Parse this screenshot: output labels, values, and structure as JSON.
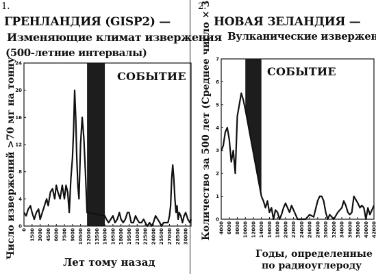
{
  "panels": [
    {
      "number": "1.",
      "title_lines": [
        "ГРЕНЛАНДИЯ (GISP2) —",
        "Изменяющие климат извержения",
        "(500-летние интервалы)"
      ],
      "event_label": "СОБЫТИЕ",
      "xlabel": "Лет тому назад",
      "ylabel": "Число извержений >70 мг на тонну"
    },
    {
      "number": "2.",
      "title_lines": [
        "НОВАЯ ЗЕЛАНДИЯ —",
        "Вулканические извержения"
      ],
      "event_label": "СОБЫТИЕ",
      "xlabel_lines": [
        "Годы, определенные",
        "по радиоуглероду"
      ],
      "ylabel": "Количество за 500 лет (Среднее число × 3)"
    }
  ],
  "chart_data": [
    {
      "type": "line",
      "title": "ГРЕНЛАНДИЯ (GISP2) — Изменяющие климат извержения (500-летние интервалы)",
      "xlabel": "Лет тому назад",
      "ylabel": "Число извержений >70 мг на тонну",
      "xlim": [
        0,
        31000
      ],
      "ylim": [
        0,
        24
      ],
      "y_ticks": [
        0,
        4,
        8,
        12,
        16,
        20,
        24
      ],
      "x_ticks": [
        0,
        1500,
        3000,
        4500,
        6000,
        7500,
        9000,
        10500,
        12000,
        13500,
        15000,
        16500,
        18000,
        19500,
        21000,
        22500,
        24000,
        25500,
        27000,
        28500,
        30000
      ],
      "event_band": [
        11700,
        15000
      ],
      "event_label": "СОБЫТИЕ",
      "grid": false,
      "legend": "none",
      "x": [
        0,
        400,
        800,
        1200,
        1500,
        1900,
        2300,
        2700,
        3000,
        3400,
        3800,
        4200,
        4500,
        4900,
        5300,
        5700,
        6000,
        6300,
        6700,
        7100,
        7500,
        7800,
        8100,
        8400,
        8700,
        9000,
        9200,
        9400,
        9600,
        9800,
        10000,
        10200,
        10500,
        10800,
        11100,
        11400,
        11600,
        11700,
        15000,
        15300,
        15700,
        16100,
        16500,
        16900,
        17300,
        17700,
        18000,
        18400,
        18800,
        19200,
        19500,
        19900,
        20300,
        20700,
        21000,
        21400,
        21800,
        22200,
        22500,
        22900,
        23300,
        23700,
        24000,
        24400,
        24800,
        25200,
        25500,
        25900,
        26300,
        26700,
        27000,
        27200,
        27400,
        27600,
        27800,
        28000,
        28200,
        28400,
        28600,
        28800,
        29100,
        29400,
        29700,
        30000,
        30400,
        30800,
        31000
      ],
      "values": [
        2,
        1.5,
        2.5,
        3,
        2,
        1,
        2,
        2.5,
        1,
        2,
        3,
        4,
        3,
        5,
        5.5,
        4,
        6,
        5,
        4,
        6,
        4,
        6,
        5,
        2,
        7,
        10,
        14,
        20,
        16,
        10,
        6,
        4,
        12,
        16,
        13,
        8,
        4,
        2,
        1.5,
        1,
        0.5,
        1,
        1.5,
        0.5,
        1,
        2,
        1,
        0.5,
        1,
        2,
        2,
        0.5,
        0.5,
        1.5,
        1,
        0.5,
        0.5,
        1,
        0.5,
        0,
        0.5,
        0,
        0.5,
        1.5,
        1,
        0.5,
        0,
        0.5,
        0.5,
        0.5,
        1.5,
        3,
        7,
        9,
        7,
        4,
        2,
        3,
        1,
        2,
        1.5,
        0.5,
        1.5,
        2,
        1,
        0.5,
        1
      ]
    },
    {
      "type": "area",
      "title": "НОВАЯ ЗЕЛАНДИЯ — Вулканические извержения",
      "xlabel": "Годы, определенные по радиоуглероду",
      "ylabel": "Количество за 500 лет (Среднее число × 3)",
      "xlim": [
        4000,
        42000
      ],
      "ylim": [
        0,
        7
      ],
      "y_ticks": [
        0,
        1,
        2,
        3,
        4,
        5,
        6,
        7
      ],
      "x_ticks": [
        4000,
        6000,
        8000,
        10000,
        12000,
        14000,
        16000,
        18000,
        20000,
        22000,
        24000,
        26000,
        28000,
        30000,
        32000,
        34000,
        36000,
        38000,
        40000,
        42000
      ],
      "event_band": [
        10000,
        14000
      ],
      "event_label": "СОБЫТИЕ",
      "grid": false,
      "legend": "none",
      "x": [
        4000,
        4500,
        5000,
        5500,
        6000,
        6500,
        7000,
        7500,
        8000,
        8500,
        9000,
        9500,
        10000,
        14000,
        14500,
        15000,
        15500,
        16000,
        16500,
        17000,
        17500,
        18000,
        18500,
        19000,
        19500,
        20000,
        20500,
        21000,
        21500,
        22000,
        22500,
        23000,
        24000,
        25000,
        26000,
        27000,
        28000,
        28500,
        29000,
        29500,
        30000,
        30500,
        31000,
        32000,
        33000,
        34000,
        34500,
        35000,
        35500,
        36000,
        36500,
        37000,
        38000,
        38500,
        39000,
        39500,
        40000,
        40500,
        41000,
        41500,
        42000
      ],
      "values": [
        3,
        3.2,
        3.8,
        4,
        3.5,
        2.5,
        3,
        2,
        4.5,
        5,
        5.5,
        5.2,
        4.8,
        1,
        0.8,
        0.5,
        0.8,
        0.3,
        0.5,
        0,
        0.4,
        0.3,
        0,
        0.2,
        0.5,
        0.7,
        0.5,
        0.3,
        0.6,
        0.4,
        0.2,
        0,
        0,
        0,
        0.2,
        0.1,
        0.8,
        1,
        1,
        0.8,
        0.3,
        0,
        0.2,
        0,
        0.3,
        0.5,
        0.8,
        0.6,
        0.3,
        0.2,
        0.3,
        1,
        0.7,
        0.5,
        0.6,
        0.5,
        0,
        0.5,
        0.2,
        0.4,
        0.6
      ]
    }
  ]
}
